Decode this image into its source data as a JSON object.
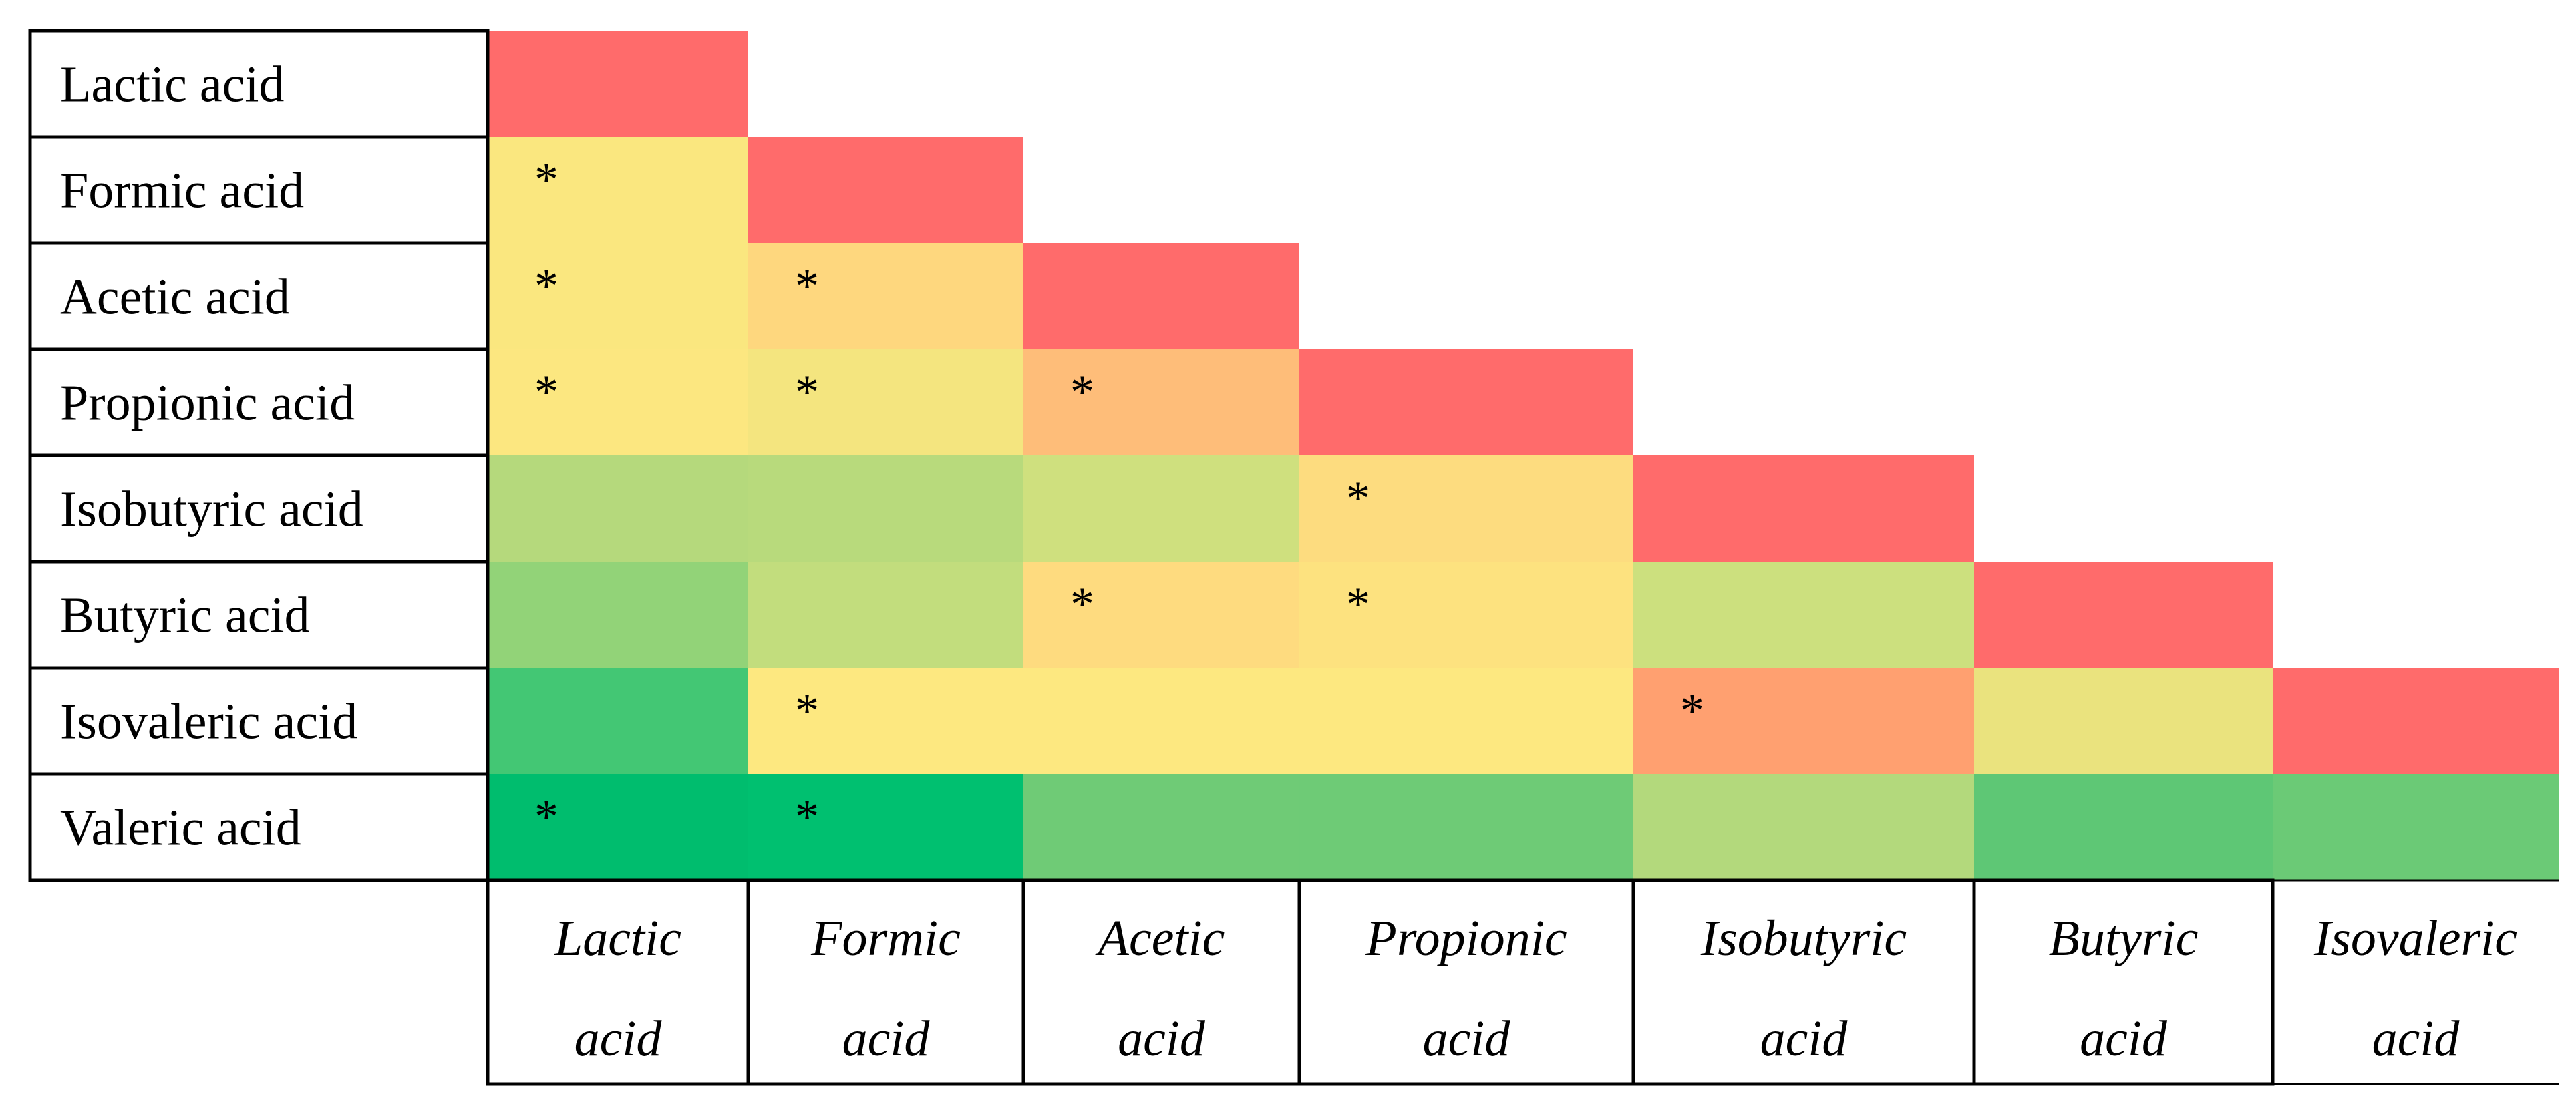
{
  "chart_data": {
    "type": "heatmap",
    "layout": "lower-triangular correlation matrix",
    "row_labels": [
      "Lactic acid",
      "Formic acid",
      "Acetic acid",
      "Propionic acid",
      "Isobutyric acid",
      "Butyric acid",
      "Isovaleric acid",
      "Valeric acid"
    ],
    "column_labels": [
      [
        "Lactic",
        "acid"
      ],
      [
        "Formic",
        "acid"
      ],
      [
        "Acetic",
        "acid"
      ],
      [
        "Propionic",
        "acid"
      ],
      [
        "Isobutyric",
        "acid"
      ],
      [
        "Butyric",
        "acid"
      ],
      [
        "Isovaleric",
        "acid"
      ]
    ],
    "significance_marker": "*",
    "cells": [
      {
        "row": 0,
        "col": 0,
        "color": "#ff6b6b",
        "significant": false
      },
      {
        "row": 1,
        "col": 0,
        "color": "#fae77f",
        "significant": true
      },
      {
        "row": 1,
        "col": 1,
        "color": "#ff6b6b",
        "significant": false
      },
      {
        "row": 2,
        "col": 0,
        "color": "#fae77f",
        "significant": true
      },
      {
        "row": 2,
        "col": 1,
        "color": "#fed77e",
        "significant": true
      },
      {
        "row": 2,
        "col": 2,
        "color": "#ff6b6b",
        "significant": false
      },
      {
        "row": 3,
        "col": 0,
        "color": "#fce780",
        "significant": true
      },
      {
        "row": 3,
        "col": 1,
        "color": "#f4e57f",
        "significant": true
      },
      {
        "row": 3,
        "col": 2,
        "color": "#febd79",
        "significant": true
      },
      {
        "row": 3,
        "col": 3,
        "color": "#ff6b6b",
        "significant": false
      },
      {
        "row": 4,
        "col": 0,
        "color": "#b5d97c",
        "significant": false
      },
      {
        "row": 4,
        "col": 1,
        "color": "#b8da7c",
        "significant": false
      },
      {
        "row": 4,
        "col": 2,
        "color": "#cfe07e",
        "significant": false
      },
      {
        "row": 4,
        "col": 3,
        "color": "#fddc7f",
        "significant": true
      },
      {
        "row": 4,
        "col": 4,
        "color": "#ff6b6b",
        "significant": false
      },
      {
        "row": 5,
        "col": 0,
        "color": "#92d378",
        "significant": false
      },
      {
        "row": 5,
        "col": 1,
        "color": "#c2dd7d",
        "significant": false
      },
      {
        "row": 5,
        "col": 2,
        "color": "#fedb7f",
        "significant": true
      },
      {
        "row": 5,
        "col": 3,
        "color": "#fde27f",
        "significant": true
      },
      {
        "row": 5,
        "col": 4,
        "color": "#cce07e",
        "significant": false
      },
      {
        "row": 5,
        "col": 5,
        "color": "#ff6b6b",
        "significant": false
      },
      {
        "row": 6,
        "col": 0,
        "color": "#43c774",
        "significant": false
      },
      {
        "row": 6,
        "col": 1,
        "color": "#fde880",
        "significant": true
      },
      {
        "row": 6,
        "col": 2,
        "color": "#fde880",
        "significant": false
      },
      {
        "row": 6,
        "col": 3,
        "color": "#fde880",
        "significant": false
      },
      {
        "row": 6,
        "col": 4,
        "color": "#ffa070",
        "significant": true
      },
      {
        "row": 6,
        "col": 5,
        "color": "#eae37e",
        "significant": false
      },
      {
        "row": 6,
        "col": 6,
        "color": "#ff6b6b",
        "significant": false
      },
      {
        "row": 7,
        "col": 0,
        "color": "#00bd6e",
        "significant": true
      },
      {
        "row": 7,
        "col": 1,
        "color": "#00c070",
        "significant": true
      },
      {
        "row": 7,
        "col": 2,
        "color": "#6fcb76",
        "significant": false
      },
      {
        "row": 7,
        "col": 3,
        "color": "#6ecb76",
        "significant": false
      },
      {
        "row": 7,
        "col": 4,
        "color": "#b3d97c",
        "significant": false
      },
      {
        "row": 7,
        "col": 5,
        "color": "#5ec775",
        "significant": false
      },
      {
        "row": 7,
        "col": 6,
        "color": "#6bca76",
        "significant": false
      }
    ]
  }
}
